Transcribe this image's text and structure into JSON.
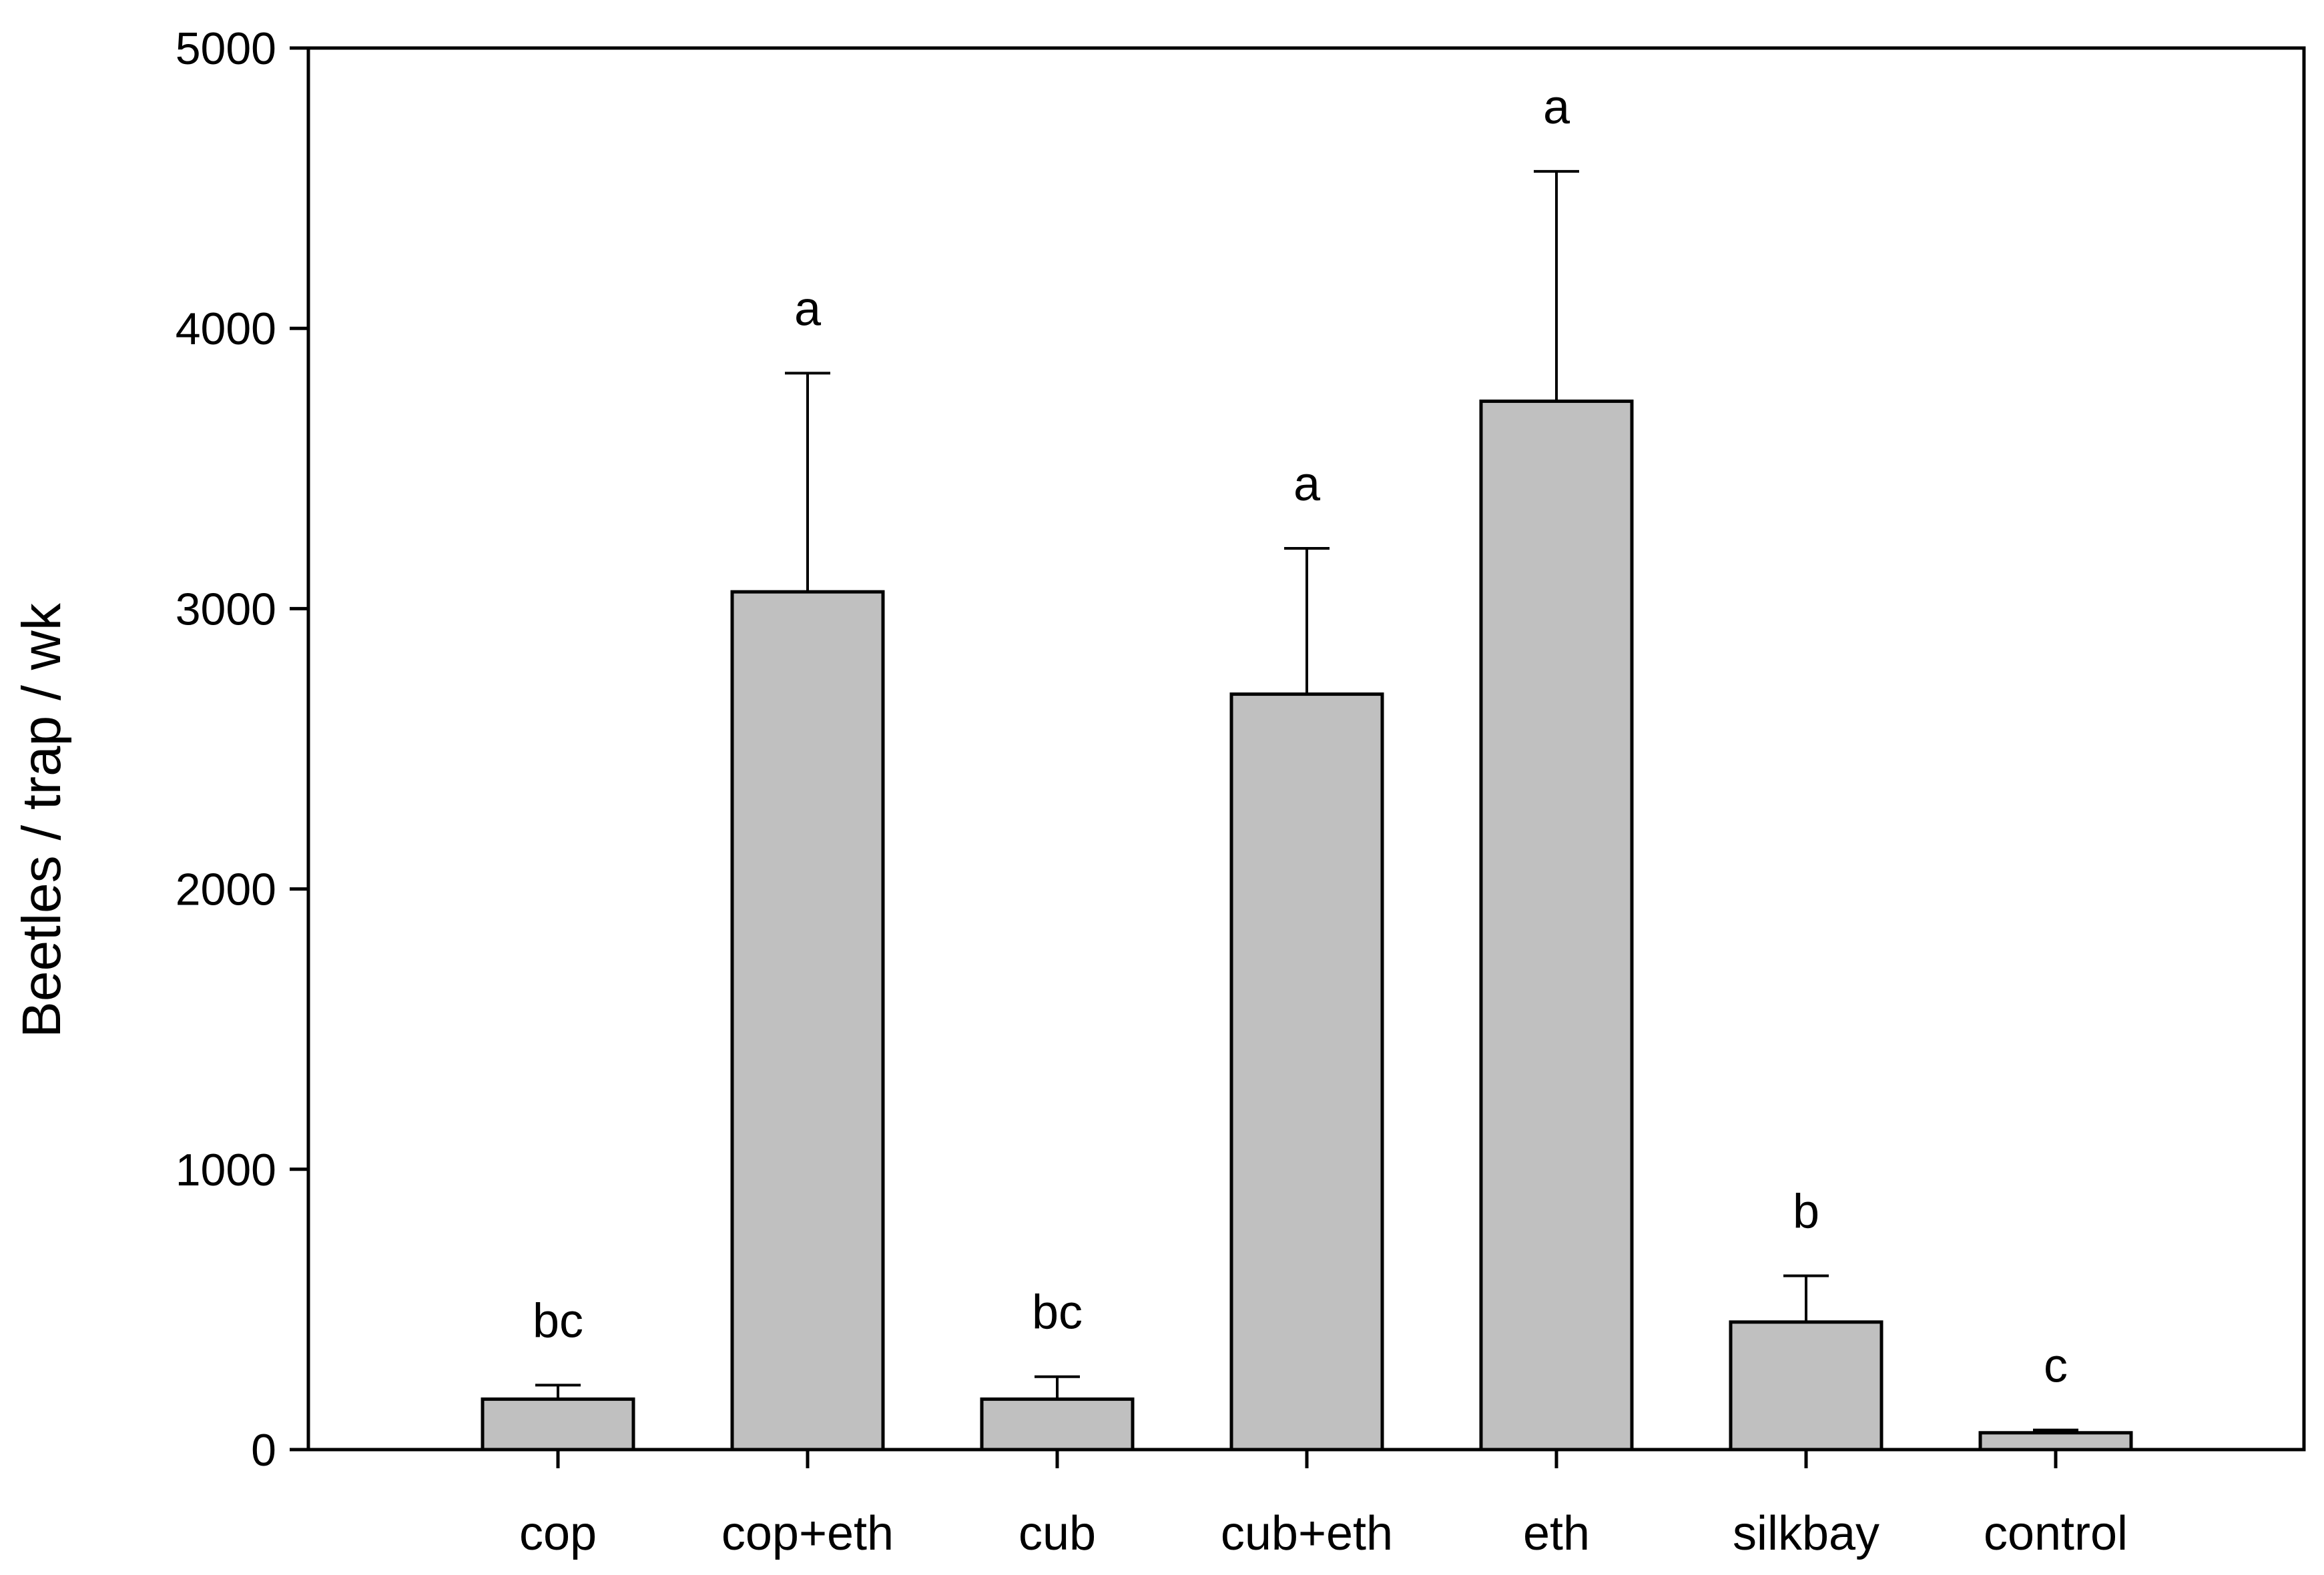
{
  "chart_data": {
    "type": "bar",
    "title": "",
    "xlabel": "",
    "ylabel": "Beetles / trap / wk",
    "ylim": [
      0,
      5000
    ],
    "yticks": [
      0,
      1000,
      2000,
      3000,
      4000,
      5000
    ],
    "grid": false,
    "legend": "none",
    "bar_color": "#c0c0c0",
    "categories": [
      "cop",
      "cop+eth",
      "cub",
      "cub+eth",
      "eth",
      "silkbay",
      "control"
    ],
    "values": [
      180,
      3060,
      180,
      2695,
      3740,
      455,
      60
    ],
    "errors": [
      50,
      780,
      80,
      520,
      820,
      165,
      10
    ],
    "significance": [
      "bc",
      "a",
      "bc",
      "a",
      "a",
      "b",
      "c"
    ]
  }
}
